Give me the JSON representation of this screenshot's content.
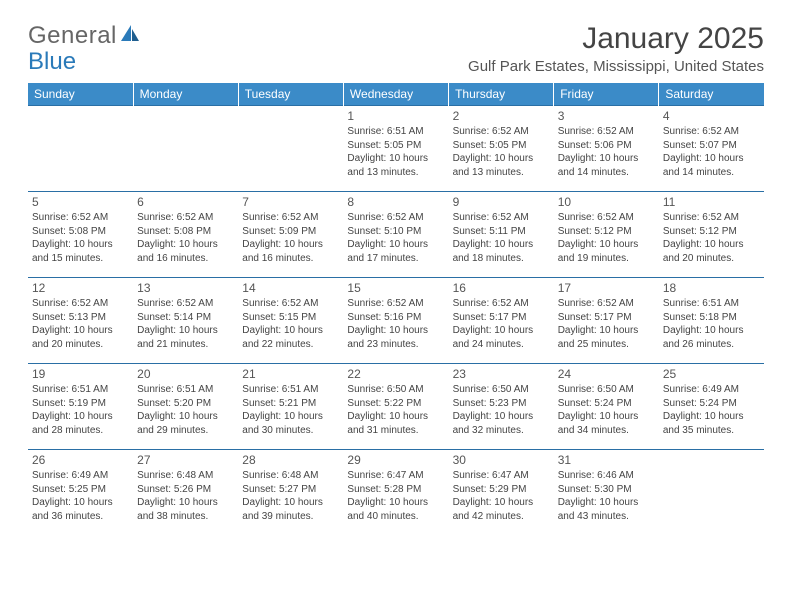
{
  "logo": {
    "text_a": "General",
    "text_b": "Blue"
  },
  "title": "January 2025",
  "location": "Gulf Park Estates, Mississippi, United States",
  "colors": {
    "header_bg": "#3b8bc8",
    "header_text": "#ffffff",
    "row_border": "#2a6fa5",
    "alt_row_bg": "#f3f5f7",
    "body_text": "#444444",
    "logo_blue": "#2a7ab9"
  },
  "weekdays": [
    "Sunday",
    "Monday",
    "Tuesday",
    "Wednesday",
    "Thursday",
    "Friday",
    "Saturday"
  ],
  "weeks": [
    [
      null,
      null,
      null,
      {
        "n": "1",
        "sr": "6:51 AM",
        "ss": "5:05 PM",
        "dl": "10 hours and 13 minutes."
      },
      {
        "n": "2",
        "sr": "6:52 AM",
        "ss": "5:05 PM",
        "dl": "10 hours and 13 minutes."
      },
      {
        "n": "3",
        "sr": "6:52 AM",
        "ss": "5:06 PM",
        "dl": "10 hours and 14 minutes."
      },
      {
        "n": "4",
        "sr": "6:52 AM",
        "ss": "5:07 PM",
        "dl": "10 hours and 14 minutes."
      }
    ],
    [
      {
        "n": "5",
        "sr": "6:52 AM",
        "ss": "5:08 PM",
        "dl": "10 hours and 15 minutes."
      },
      {
        "n": "6",
        "sr": "6:52 AM",
        "ss": "5:08 PM",
        "dl": "10 hours and 16 minutes."
      },
      {
        "n": "7",
        "sr": "6:52 AM",
        "ss": "5:09 PM",
        "dl": "10 hours and 16 minutes."
      },
      {
        "n": "8",
        "sr": "6:52 AM",
        "ss": "5:10 PM",
        "dl": "10 hours and 17 minutes."
      },
      {
        "n": "9",
        "sr": "6:52 AM",
        "ss": "5:11 PM",
        "dl": "10 hours and 18 minutes."
      },
      {
        "n": "10",
        "sr": "6:52 AM",
        "ss": "5:12 PM",
        "dl": "10 hours and 19 minutes."
      },
      {
        "n": "11",
        "sr": "6:52 AM",
        "ss": "5:12 PM",
        "dl": "10 hours and 20 minutes."
      }
    ],
    [
      {
        "n": "12",
        "sr": "6:52 AM",
        "ss": "5:13 PM",
        "dl": "10 hours and 20 minutes."
      },
      {
        "n": "13",
        "sr": "6:52 AM",
        "ss": "5:14 PM",
        "dl": "10 hours and 21 minutes."
      },
      {
        "n": "14",
        "sr": "6:52 AM",
        "ss": "5:15 PM",
        "dl": "10 hours and 22 minutes."
      },
      {
        "n": "15",
        "sr": "6:52 AM",
        "ss": "5:16 PM",
        "dl": "10 hours and 23 minutes."
      },
      {
        "n": "16",
        "sr": "6:52 AM",
        "ss": "5:17 PM",
        "dl": "10 hours and 24 minutes."
      },
      {
        "n": "17",
        "sr": "6:52 AM",
        "ss": "5:17 PM",
        "dl": "10 hours and 25 minutes."
      },
      {
        "n": "18",
        "sr": "6:51 AM",
        "ss": "5:18 PM",
        "dl": "10 hours and 26 minutes."
      }
    ],
    [
      {
        "n": "19",
        "sr": "6:51 AM",
        "ss": "5:19 PM",
        "dl": "10 hours and 28 minutes."
      },
      {
        "n": "20",
        "sr": "6:51 AM",
        "ss": "5:20 PM",
        "dl": "10 hours and 29 minutes."
      },
      {
        "n": "21",
        "sr": "6:51 AM",
        "ss": "5:21 PM",
        "dl": "10 hours and 30 minutes."
      },
      {
        "n": "22",
        "sr": "6:50 AM",
        "ss": "5:22 PM",
        "dl": "10 hours and 31 minutes."
      },
      {
        "n": "23",
        "sr": "6:50 AM",
        "ss": "5:23 PM",
        "dl": "10 hours and 32 minutes."
      },
      {
        "n": "24",
        "sr": "6:50 AM",
        "ss": "5:24 PM",
        "dl": "10 hours and 34 minutes."
      },
      {
        "n": "25",
        "sr": "6:49 AM",
        "ss": "5:24 PM",
        "dl": "10 hours and 35 minutes."
      }
    ],
    [
      {
        "n": "26",
        "sr": "6:49 AM",
        "ss": "5:25 PM",
        "dl": "10 hours and 36 minutes."
      },
      {
        "n": "27",
        "sr": "6:48 AM",
        "ss": "5:26 PM",
        "dl": "10 hours and 38 minutes."
      },
      {
        "n": "28",
        "sr": "6:48 AM",
        "ss": "5:27 PM",
        "dl": "10 hours and 39 minutes."
      },
      {
        "n": "29",
        "sr": "6:47 AM",
        "ss": "5:28 PM",
        "dl": "10 hours and 40 minutes."
      },
      {
        "n": "30",
        "sr": "6:47 AM",
        "ss": "5:29 PM",
        "dl": "10 hours and 42 minutes."
      },
      {
        "n": "31",
        "sr": "6:46 AM",
        "ss": "5:30 PM",
        "dl": "10 hours and 43 minutes."
      },
      null
    ]
  ],
  "labels": {
    "sunrise": "Sunrise:",
    "sunset": "Sunset:",
    "daylight": "Daylight:"
  }
}
